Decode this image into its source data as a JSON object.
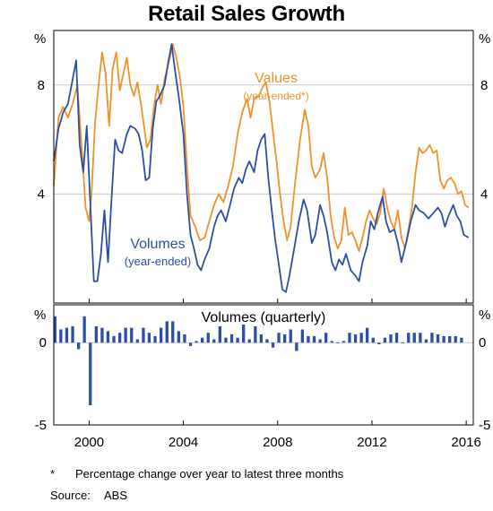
{
  "title": "Retail Sales Growth",
  "footnote_marker": "*",
  "footnote_text": "Percentage change over year to latest three months",
  "source_label": "Source:",
  "source_value": "ABS",
  "colors": {
    "values": "#f0922a",
    "volumes": "#2b4fa3",
    "grid": "#c8c8c8",
    "axis": "#000000"
  },
  "chart_data": [
    {
      "type": "line",
      "unit_label": "%",
      "ylim": [
        0,
        10
      ],
      "yticks": [
        4,
        8
      ],
      "xlim": [
        1998.5,
        2016.3
      ],
      "xticks": [
        2000,
        2004,
        2008,
        2012,
        2016
      ],
      "xtick_labels": [
        "2000",
        "2004",
        "2008",
        "2012",
        "2016"
      ],
      "grid": true,
      "series": [
        {
          "name": "Values",
          "label_line2": "(year-ended*)",
          "color": "#f0922a",
          "points": [
            [
              1998.5,
              4.3
            ],
            [
              1998.7,
              6.8
            ],
            [
              1998.9,
              7.2
            ],
            [
              1999.1,
              6.8
            ],
            [
              1999.3,
              7.3
            ],
            [
              1999.5,
              8.0
            ],
            [
              1999.7,
              5.5
            ],
            [
              1999.85,
              3.5
            ],
            [
              2000.0,
              3.0
            ],
            [
              2000.1,
              4.0
            ],
            [
              2000.25,
              6.6
            ],
            [
              2000.4,
              8.0
            ],
            [
              2000.55,
              9.2
            ],
            [
              2000.7,
              8.4
            ],
            [
              2000.85,
              6.5
            ],
            [
              2001.0,
              8.6
            ],
            [
              2001.15,
              9.2
            ],
            [
              2001.3,
              7.8
            ],
            [
              2001.45,
              8.4
            ],
            [
              2001.6,
              9.0
            ],
            [
              2001.75,
              8.0
            ],
            [
              2001.9,
              7.6
            ],
            [
              2002.05,
              8.1
            ],
            [
              2002.25,
              7.0
            ],
            [
              2002.45,
              5.7
            ],
            [
              2002.6,
              6.0
            ],
            [
              2002.75,
              7.2
            ],
            [
              2002.9,
              8.0
            ],
            [
              2003.05,
              7.3
            ],
            [
              2003.2,
              8.2
            ],
            [
              2003.4,
              8.9
            ],
            [
              2003.55,
              9.5
            ],
            [
              2003.7,
              9.0
            ],
            [
              2003.85,
              8.3
            ],
            [
              2004.0,
              7.2
            ],
            [
              2004.15,
              5.0
            ],
            [
              2004.3,
              3.2
            ],
            [
              2004.5,
              2.8
            ],
            [
              2004.7,
              2.3
            ],
            [
              2004.9,
              2.4
            ],
            [
              2005.1,
              3.0
            ],
            [
              2005.3,
              3.6
            ],
            [
              2005.5,
              4.0
            ],
            [
              2005.7,
              3.7
            ],
            [
              2005.9,
              4.3
            ],
            [
              2006.1,
              5.0
            ],
            [
              2006.3,
              6.2
            ],
            [
              2006.5,
              7.0
            ],
            [
              2006.7,
              7.5
            ],
            [
              2006.85,
              6.8
            ],
            [
              2007.0,
              7.5
            ],
            [
              2007.2,
              7.6
            ],
            [
              2007.35,
              7.9
            ],
            [
              2007.5,
              8.1
            ],
            [
              2007.65,
              7.4
            ],
            [
              2007.8,
              6.3
            ],
            [
              2007.95,
              5.2
            ],
            [
              2008.1,
              4.0
            ],
            [
              2008.25,
              3.0
            ],
            [
              2008.4,
              2.3
            ],
            [
              2008.55,
              2.8
            ],
            [
              2008.75,
              4.5
            ],
            [
              2008.95,
              6.0
            ],
            [
              2009.15,
              7.1
            ],
            [
              2009.3,
              6.5
            ],
            [
              2009.45,
              5.0
            ],
            [
              2009.6,
              4.6
            ],
            [
              2009.8,
              4.9
            ],
            [
              2009.95,
              5.5
            ],
            [
              2010.1,
              4.6
            ],
            [
              2010.25,
              3.2
            ],
            [
              2010.4,
              2.4
            ],
            [
              2010.55,
              2.0
            ],
            [
              2010.7,
              2.3
            ],
            [
              2010.85,
              3.5
            ],
            [
              2011.0,
              2.5
            ],
            [
              2011.15,
              2.6
            ],
            [
              2011.3,
              2.3
            ],
            [
              2011.45,
              1.9
            ],
            [
              2011.6,
              2.4
            ],
            [
              2011.75,
              3.0
            ],
            [
              2011.9,
              3.4
            ],
            [
              2012.05,
              3.1
            ],
            [
              2012.2,
              2.9
            ],
            [
              2012.35,
              3.3
            ],
            [
              2012.5,
              4.2
            ],
            [
              2012.65,
              3.5
            ],
            [
              2012.8,
              3.0
            ],
            [
              2012.95,
              2.7
            ],
            [
              2013.1,
              3.4
            ],
            [
              2013.25,
              2.4
            ],
            [
              2013.4,
              2.0
            ],
            [
              2013.55,
              2.7
            ],
            [
              2013.7,
              3.5
            ],
            [
              2013.85,
              4.8
            ],
            [
              2014.0,
              5.7
            ],
            [
              2014.15,
              5.5
            ],
            [
              2014.3,
              5.6
            ],
            [
              2014.45,
              5.8
            ],
            [
              2014.6,
              5.5
            ],
            [
              2014.75,
              5.6
            ],
            [
              2014.9,
              4.5
            ],
            [
              2015.05,
              4.2
            ],
            [
              2015.2,
              4.5
            ],
            [
              2015.35,
              4.6
            ],
            [
              2015.5,
              4.4
            ],
            [
              2015.65,
              4.0
            ],
            [
              2015.8,
              4.1
            ],
            [
              2015.95,
              3.6
            ],
            [
              2016.1,
              3.5
            ]
          ]
        },
        {
          "name": "Volumes",
          "label_line2": "(year-ended)",
          "color": "#2b4fa3",
          "points": [
            [
              1998.5,
              5.2
            ],
            [
              1998.7,
              6.4
            ],
            [
              1998.9,
              7.0
            ],
            [
              1999.1,
              7.3
            ],
            [
              1999.3,
              8.2
            ],
            [
              1999.45,
              8.9
            ],
            [
              1999.6,
              5.8
            ],
            [
              1999.75,
              4.8
            ],
            [
              1999.9,
              6.5
            ],
            [
              2000.05,
              3.6
            ],
            [
              2000.2,
              0.8
            ],
            [
              2000.35,
              0.8
            ],
            [
              2000.5,
              1.8
            ],
            [
              2000.65,
              3.4
            ],
            [
              2000.8,
              1.5
            ],
            [
              2000.95,
              3.8
            ],
            [
              2001.1,
              6.0
            ],
            [
              2001.25,
              5.6
            ],
            [
              2001.4,
              5.5
            ],
            [
              2001.6,
              6.2
            ],
            [
              2001.75,
              6.5
            ],
            [
              2001.95,
              6.4
            ],
            [
              2002.1,
              6.2
            ],
            [
              2002.25,
              5.6
            ],
            [
              2002.4,
              4.5
            ],
            [
              2002.55,
              4.6
            ],
            [
              2002.7,
              6.4
            ],
            [
              2002.85,
              7.4
            ],
            [
              2003.0,
              7.6
            ],
            [
              2003.2,
              8.0
            ],
            [
              2003.35,
              8.8
            ],
            [
              2003.5,
              9.5
            ],
            [
              2003.65,
              8.5
            ],
            [
              2003.8,
              7.6
            ],
            [
              2004.0,
              6.2
            ],
            [
              2004.15,
              4.0
            ],
            [
              2004.3,
              2.5
            ],
            [
              2004.45,
              2.0
            ],
            [
              2004.6,
              1.4
            ],
            [
              2004.75,
              1.2
            ],
            [
              2004.9,
              1.6
            ],
            [
              2005.1,
              2.0
            ],
            [
              2005.3,
              2.8
            ],
            [
              2005.45,
              3.2
            ],
            [
              2005.6,
              3.4
            ],
            [
              2005.8,
              3.0
            ],
            [
              2005.95,
              3.5
            ],
            [
              2006.15,
              4.2
            ],
            [
              2006.35,
              4.6
            ],
            [
              2006.5,
              4.4
            ],
            [
              2006.65,
              4.9
            ],
            [
              2006.8,
              5.2
            ],
            [
              2007.0,
              4.8
            ],
            [
              2007.15,
              5.6
            ],
            [
              2007.3,
              6.0
            ],
            [
              2007.45,
              6.2
            ],
            [
              2007.6,
              4.6
            ],
            [
              2007.75,
              3.4
            ],
            [
              2007.9,
              2.3
            ],
            [
              2008.05,
              1.4
            ],
            [
              2008.2,
              0.5
            ],
            [
              2008.35,
              0.4
            ],
            [
              2008.5,
              1.0
            ],
            [
              2008.7,
              2.0
            ],
            [
              2008.9,
              3.0
            ],
            [
              2009.1,
              3.8
            ],
            [
              2009.25,
              3.4
            ],
            [
              2009.45,
              2.2
            ],
            [
              2009.6,
              2.5
            ],
            [
              2009.8,
              3.6
            ],
            [
              2009.95,
              3.2
            ],
            [
              2010.1,
              2.6
            ],
            [
              2010.3,
              1.5
            ],
            [
              2010.45,
              1.2
            ],
            [
              2010.6,
              1.6
            ],
            [
              2010.75,
              1.4
            ],
            [
              2010.9,
              1.8
            ],
            [
              2011.1,
              1.2
            ],
            [
              2011.3,
              1.0
            ],
            [
              2011.45,
              0.8
            ],
            [
              2011.6,
              1.5
            ],
            [
              2011.8,
              2.1
            ],
            [
              2011.95,
              3.0
            ],
            [
              2012.1,
              2.7
            ],
            [
              2012.25,
              3.3
            ],
            [
              2012.45,
              3.9
            ],
            [
              2012.6,
              3.0
            ],
            [
              2012.75,
              2.6
            ],
            [
              2012.95,
              2.7
            ],
            [
              2013.1,
              2.2
            ],
            [
              2013.25,
              1.5
            ],
            [
              2013.45,
              2.2
            ],
            [
              2013.65,
              3.0
            ],
            [
              2013.85,
              3.6
            ],
            [
              2014.0,
              3.4
            ],
            [
              2014.2,
              3.3
            ],
            [
              2014.4,
              3.1
            ],
            [
              2014.6,
              3.3
            ],
            [
              2014.8,
              3.5
            ],
            [
              2014.95,
              3.3
            ],
            [
              2015.1,
              2.8
            ],
            [
              2015.25,
              3.2
            ],
            [
              2015.45,
              3.6
            ],
            [
              2015.6,
              3.2
            ],
            [
              2015.75,
              3.0
            ],
            [
              2015.9,
              2.5
            ],
            [
              2016.1,
              2.4
            ]
          ]
        }
      ]
    },
    {
      "type": "bar",
      "title": "Volumes (quarterly)",
      "unit_label": "%",
      "ylim": [
        -5,
        2.3
      ],
      "yticks": [
        0,
        -5
      ],
      "xlim": [
        1998.5,
        2016.3
      ],
      "color": "#2b4fa3",
      "grid": true,
      "x": [
        1998.55,
        1998.8,
        1999.05,
        1999.3,
        1999.55,
        1999.8,
        2000.05,
        2000.3,
        2000.55,
        2000.8,
        2001.05,
        2001.3,
        2001.55,
        2001.8,
        2002.05,
        2002.3,
        2002.55,
        2002.8,
        2003.05,
        2003.3,
        2003.55,
        2003.8,
        2004.05,
        2004.3,
        2004.55,
        2004.8,
        2005.05,
        2005.3,
        2005.55,
        2005.8,
        2006.05,
        2006.3,
        2006.55,
        2006.8,
        2007.05,
        2007.3,
        2007.55,
        2007.8,
        2008.05,
        2008.3,
        2008.55,
        2008.8,
        2009.05,
        2009.3,
        2009.55,
        2009.8,
        2010.05,
        2010.3,
        2010.55,
        2010.8,
        2011.05,
        2011.3,
        2011.55,
        2011.8,
        2012.05,
        2012.3,
        2012.55,
        2012.8,
        2013.05,
        2013.3,
        2013.55,
        2013.8,
        2014.05,
        2014.3,
        2014.55,
        2014.8,
        2015.05,
        2015.3,
        2015.55,
        2015.8
      ],
      "values": [
        1.6,
        0.8,
        0.9,
        1.0,
        -0.4,
        1.6,
        -3.8,
        1.0,
        0.9,
        0.7,
        0.4,
        0.6,
        0.9,
        0.9,
        0.2,
        0.9,
        0.6,
        0.4,
        0.9,
        1.3,
        1.3,
        0.7,
        0.5,
        -0.2,
        0.1,
        0.3,
        0.6,
        0.2,
        1.0,
        0.3,
        0.5,
        0.3,
        1.1,
        0.2,
        1.0,
        0.5,
        0.2,
        -0.3,
        0.6,
        0.5,
        0.8,
        -0.5,
        0.8,
        0.4,
        0.4,
        0.2,
        0.6,
        0.1,
        0.0,
        0.1,
        0.6,
        0.5,
        0.6,
        0.9,
        0.3,
        -0.1,
        0.3,
        0.5,
        0.6,
        0.0,
        0.6,
        0.6,
        0.6,
        0.2,
        0.6,
        0.5,
        0.4,
        0.4,
        0.4,
        0.3
      ]
    }
  ]
}
